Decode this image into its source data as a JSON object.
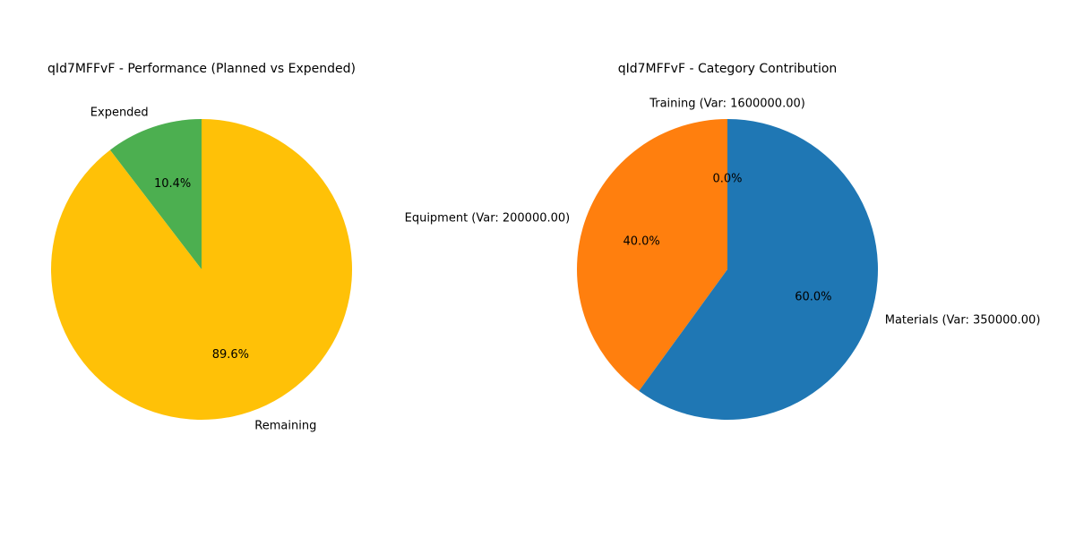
{
  "chart_data": [
    {
      "type": "pie",
      "title": "qId7MFFvF - Performance (Planned vs Expended)",
      "slices": [
        {
          "label": "Expended",
          "value": 10.4,
          "percent_label": "10.4%",
          "color": "#4caf50"
        },
        {
          "label": "Remaining",
          "value": 89.6,
          "percent_label": "89.6%",
          "color": "#ffc107"
        }
      ]
    },
    {
      "type": "pie",
      "title": "qId7MFFvF - Category Contribution",
      "slices": [
        {
          "label": "Training (Var: 1600000.00)",
          "value": 0.0,
          "percent_label": "0.0%",
          "color": "#2ca02c"
        },
        {
          "label": "Equipment (Var: 200000.00)",
          "value": 40.0,
          "percent_label": "40.0%",
          "color": "#ff7f0e"
        },
        {
          "label": "Materials (Var: 350000.00)",
          "value": 60.0,
          "percent_label": "60.0%",
          "color": "#1f77b4"
        }
      ]
    }
  ]
}
